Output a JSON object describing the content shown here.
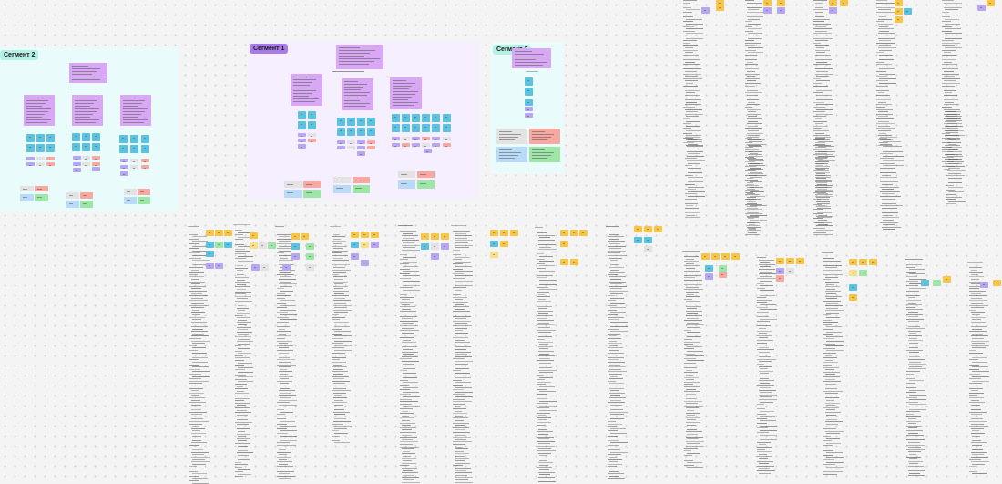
{
  "canvas": {
    "background": "#f4f4f4"
  },
  "frames": [
    {
      "id": "seg2",
      "label": "Сегмент 2",
      "label_bg": "#b4f0e6",
      "bg": "#e9fbfb",
      "label_color": "#1a1a1a"
    },
    {
      "id": "seg1",
      "label": "Сегмент 1",
      "label_bg": "#a97be8",
      "bg": "#f6efff",
      "label_color": "#1a1a1a"
    },
    {
      "id": "seg3",
      "label": "Сегмент 3",
      "label_bg": "#b4f0e6",
      "bg": "#e9fbfb",
      "label_color": "#1a1a1a"
    }
  ],
  "colors": {
    "purple_note": "#d9a8f5",
    "blue_note": "#5bc2e0",
    "red_note": "#f7a8a0",
    "green_note": "#9ee6a8",
    "light_blue_note": "#b9dbf7",
    "orange_note": "#f7c548",
    "yellow_note": "#f9e08c",
    "grey_note": "#e3e3e3",
    "violet_note": "#b8a6f0"
  },
  "icons": {
    "note": "sticky-note-icon"
  }
}
